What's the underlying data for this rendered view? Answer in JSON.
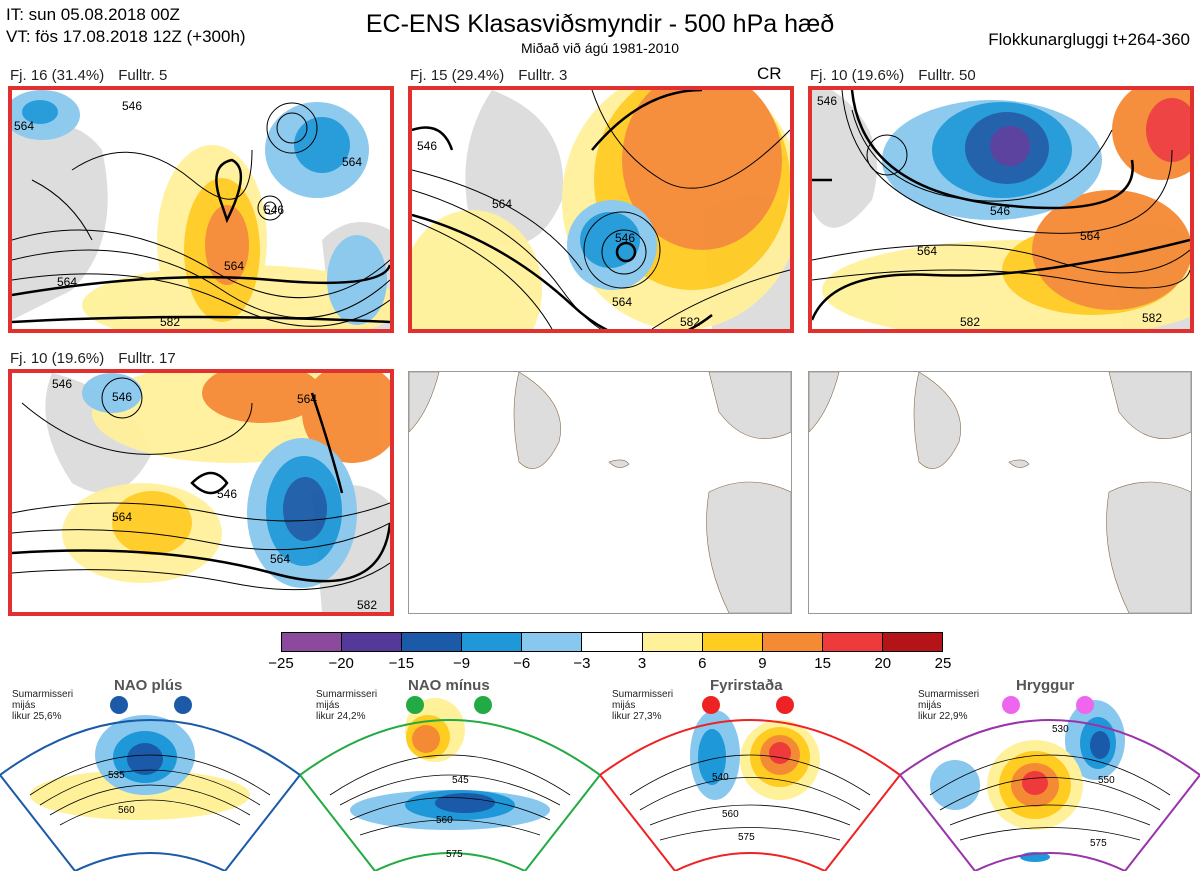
{
  "header": {
    "initial_time": "IT: sun 05.08.2018 00Z",
    "valid_time": "VT: fös 17.08.2018 12Z  (+300h)",
    "title": "EC-ENS Klasasviðsmyndir - 500 hPa hæð",
    "subtitle": "Miðað við ágú 1981-2010",
    "window": "Flokkunargluggi t+264-360"
  },
  "panels": [
    {
      "count": "Fj. 16 (31.4%)",
      "rep": "Fulltr. 5",
      "active": true,
      "contours": [
        "546",
        "564",
        "564",
        "582",
        "564",
        "546",
        "564"
      ]
    },
    {
      "count": "Fj. 15 (29.4%)",
      "rep": "Fulltr. 3",
      "active": true,
      "tag": "CR",
      "contours": [
        "546",
        "564",
        "546",
        "564",
        "582"
      ]
    },
    {
      "count": "Fj. 10 (19.6%)",
      "rep": "Fulltr. 50",
      "active": true,
      "contours": [
        "546",
        "546",
        "564",
        "564",
        "582",
        "582"
      ]
    },
    {
      "count": "Fj. 10 (19.6%)",
      "rep": "Fulltr. 17",
      "active": true,
      "contours": [
        "546",
        "546",
        "564",
        "564",
        "546",
        "564",
        "582"
      ]
    },
    {
      "active": false
    },
    {
      "active": false
    }
  ],
  "colorbar": {
    "colors": [
      "#8b4a9c",
      "#54399a",
      "#1a5aa8",
      "#1e98d8",
      "#88c8ee",
      "#ffffff",
      "#fff19a",
      "#ffcc22",
      "#f58a34",
      "#ee3a3a",
      "#b41418"
    ],
    "ticks": [
      "−25",
      "−20",
      "−15",
      "−9",
      "−6",
      "−3",
      "3",
      "6",
      "9",
      "15",
      "20",
      "25"
    ]
  },
  "regimes": [
    {
      "title": "NAO plús",
      "note": "Sumarmisseri\nmijás\nlikur 25,6%",
      "color": "#1a5aa8",
      "labels": [
        "535",
        "560"
      ]
    },
    {
      "title": "NAO mínus",
      "note": "Sumarmisseri\nmijás\nlikur 24,2%",
      "color": "#22aa44",
      "labels": [
        "545",
        "560",
        "575"
      ]
    },
    {
      "title": "Fyrirstaða",
      "note": "Sumarmisseri\nmijás\nlikur 27,3%",
      "color": "#ee2222",
      "labels": [
        "540",
        "560",
        "575"
      ]
    },
    {
      "title": "Hryggur",
      "note": "Sumarmisseri\nmijás\nlikur 22,9%",
      "color": "#ee66ee",
      "labels": [
        "530",
        "550",
        "575"
      ]
    }
  ]
}
